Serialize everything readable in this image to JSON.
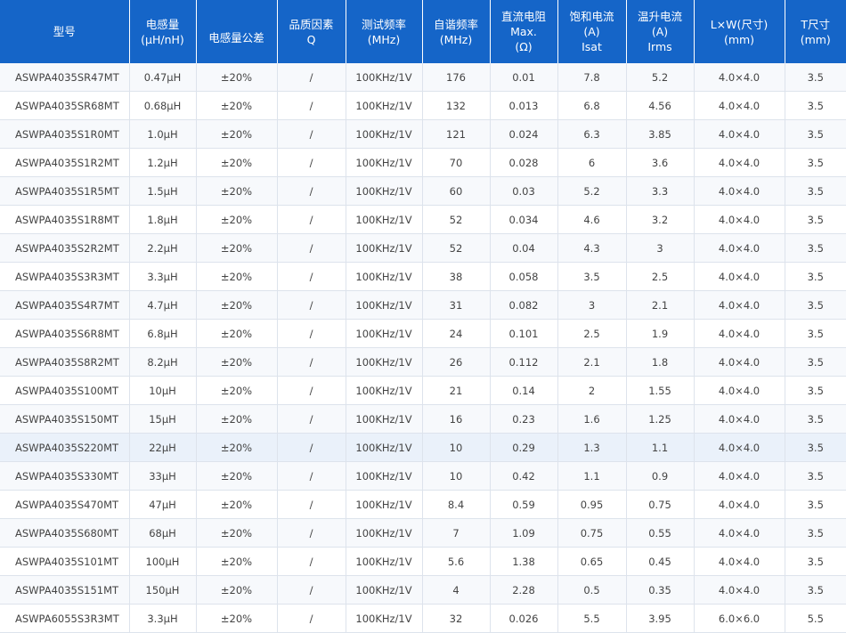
{
  "table": {
    "headers": [
      [
        "型号"
      ],
      [
        "电感量",
        "(μH/nH)"
      ],
      [
        "电感量公差"
      ],
      [
        "品质因素",
        "Q"
      ],
      [
        "测试频率",
        "(MHz)"
      ],
      [
        "自谐频率",
        "(MHz)"
      ],
      [
        "直流电阻",
        "Max.",
        "(Ω)"
      ],
      [
        "饱和电流",
        "(A)",
        "Isat"
      ],
      [
        "温升电流",
        "(A)",
        "Irms"
      ],
      [
        "L×W(尺寸)",
        "(mm)"
      ],
      [
        "T尺寸",
        "(mm)"
      ]
    ],
    "rows": [
      [
        "ASWPA4035SR47MT",
        "0.47μH",
        "±20%",
        "/",
        "100KHz/1V",
        "176",
        "0.01",
        "7.8",
        "5.2",
        "4.0×4.0",
        "3.5"
      ],
      [
        "ASWPA4035SR68MT",
        "0.68μH",
        "±20%",
        "/",
        "100KHz/1V",
        "132",
        "0.013",
        "6.8",
        "4.56",
        "4.0×4.0",
        "3.5"
      ],
      [
        "ASWPA4035S1R0MT",
        "1.0μH",
        "±20%",
        "/",
        "100KHz/1V",
        "121",
        "0.024",
        "6.3",
        "3.85",
        "4.0×4.0",
        "3.5"
      ],
      [
        "ASWPA4035S1R2MT",
        "1.2μH",
        "±20%",
        "/",
        "100KHz/1V",
        "70",
        "0.028",
        "6",
        "3.6",
        "4.0×4.0",
        "3.5"
      ],
      [
        "ASWPA4035S1R5MT",
        "1.5μH",
        "±20%",
        "/",
        "100KHz/1V",
        "60",
        "0.03",
        "5.2",
        "3.3",
        "4.0×4.0",
        "3.5"
      ],
      [
        "ASWPA4035S1R8MT",
        "1.8μH",
        "±20%",
        "/",
        "100KHz/1V",
        "52",
        "0.034",
        "4.6",
        "3.2",
        "4.0×4.0",
        "3.5"
      ],
      [
        "ASWPA4035S2R2MT",
        "2.2μH",
        "±20%",
        "/",
        "100KHz/1V",
        "52",
        "0.04",
        "4.3",
        "3",
        "4.0×4.0",
        "3.5"
      ],
      [
        "ASWPA4035S3R3MT",
        "3.3μH",
        "±20%",
        "/",
        "100KHz/1V",
        "38",
        "0.058",
        "3.5",
        "2.5",
        "4.0×4.0",
        "3.5"
      ],
      [
        "ASWPA4035S4R7MT",
        "4.7μH",
        "±20%",
        "/",
        "100KHz/1V",
        "31",
        "0.082",
        "3",
        "2.1",
        "4.0×4.0",
        "3.5"
      ],
      [
        "ASWPA4035S6R8MT",
        "6.8μH",
        "±20%",
        "/",
        "100KHz/1V",
        "24",
        "0.101",
        "2.5",
        "1.9",
        "4.0×4.0",
        "3.5"
      ],
      [
        "ASWPA4035S8R2MT",
        "8.2μH",
        "±20%",
        "/",
        "100KHz/1V",
        "26",
        "0.112",
        "2.1",
        "1.8",
        "4.0×4.0",
        "3.5"
      ],
      [
        "ASWPA4035S100MT",
        "10μH",
        "±20%",
        "/",
        "100KHz/1V",
        "21",
        "0.14",
        "2",
        "1.55",
        "4.0×4.0",
        "3.5"
      ],
      [
        "ASWPA4035S150MT",
        "15μH",
        "±20%",
        "/",
        "100KHz/1V",
        "16",
        "0.23",
        "1.6",
        "1.25",
        "4.0×4.0",
        "3.5"
      ],
      [
        "ASWPA4035S220MT",
        "22μH",
        "±20%",
        "/",
        "100KHz/1V",
        "10",
        "0.29",
        "1.3",
        "1.1",
        "4.0×4.0",
        "3.5"
      ],
      [
        "ASWPA4035S330MT",
        "33μH",
        "±20%",
        "/",
        "100KHz/1V",
        "10",
        "0.42",
        "1.1",
        "0.9",
        "4.0×4.0",
        "3.5"
      ],
      [
        "ASWPA4035S470MT",
        "47μH",
        "±20%",
        "/",
        "100KHz/1V",
        "8.4",
        "0.59",
        "0.95",
        "0.75",
        "4.0×4.0",
        "3.5"
      ],
      [
        "ASWPA4035S680MT",
        "68μH",
        "±20%",
        "/",
        "100KHz/1V",
        "7",
        "1.09",
        "0.75",
        "0.55",
        "4.0×4.0",
        "3.5"
      ],
      [
        "ASWPA4035S101MT",
        "100μH",
        "±20%",
        "/",
        "100KHz/1V",
        "5.6",
        "1.38",
        "0.65",
        "0.45",
        "4.0×4.0",
        "3.5"
      ],
      [
        "ASWPA4035S151MT",
        "150μH",
        "±20%",
        "/",
        "100KHz/1V",
        "4",
        "2.28",
        "0.5",
        "0.35",
        "4.0×4.0",
        "3.5"
      ],
      [
        "ASWPA6055S3R3MT",
        "3.3μH",
        "±20%",
        "/",
        "100KHz/1V",
        "32",
        "0.026",
        "5.5",
        "3.95",
        "6.0×6.0",
        "5.5"
      ]
    ],
    "highlighted_row_index": 13
  },
  "colors": {
    "header_background": "#1565c8",
    "header_text": "#ffffff",
    "row_odd": "#f7f9fc",
    "row_even": "#ffffff",
    "row_highlight": "#eaf1fa",
    "cell_text": "#444444",
    "border": "#dde3ec"
  }
}
